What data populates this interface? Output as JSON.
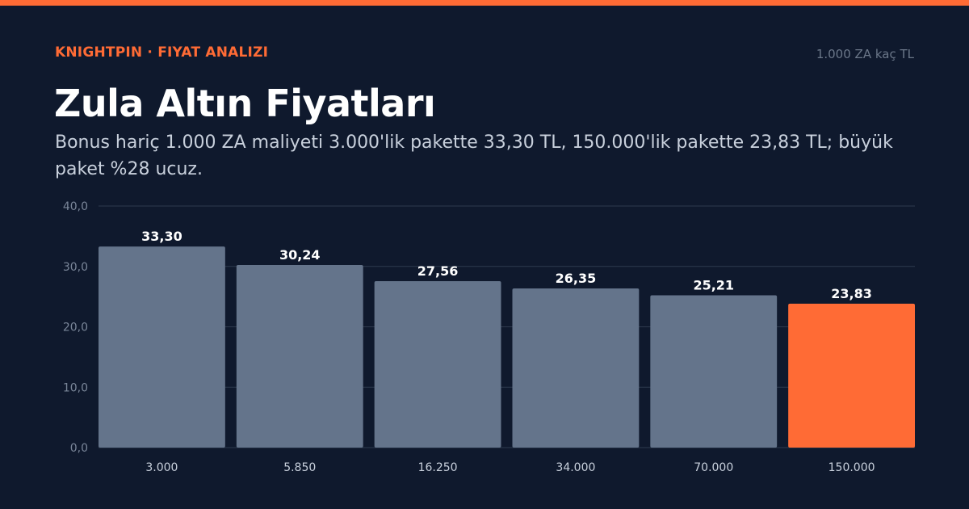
{
  "header": {
    "brand": "KNIGHTPIN · FIYAT ANALIZI",
    "corner_note": "1.000 ZA kaç TL",
    "title": "Zula Altın Fiyatları",
    "subtitle": "Bonus hariç 1.000 ZA maliyeti 3.000'lik pakette 33,30 TL, 150.000'lik pakette 23,83 TL; büyük paket %28 ucuz."
  },
  "colors": {
    "accent": "#ff6b35",
    "bar": "#64748b",
    "grid": "#2e3a4e",
    "tick": "#7a8699",
    "label": "#ffffff"
  },
  "chart_data": {
    "type": "bar",
    "categories": [
      "3.000",
      "5.850",
      "16.250",
      "34.000",
      "70.000",
      "150.000"
    ],
    "values": [
      33.3,
      30.24,
      27.56,
      26.35,
      25.21,
      23.83
    ],
    "value_labels": [
      "33,30",
      "30,24",
      "27,56",
      "26,35",
      "25,21",
      "23,83"
    ],
    "highlight_index": 5,
    "ylim": [
      0,
      40
    ],
    "yticks": [
      0,
      10,
      20,
      30,
      40
    ],
    "ytick_labels": [
      "0,0",
      "10,0",
      "20,0",
      "30,0",
      "40,0"
    ],
    "grid": true,
    "xlabel": "",
    "ylabel": ""
  }
}
